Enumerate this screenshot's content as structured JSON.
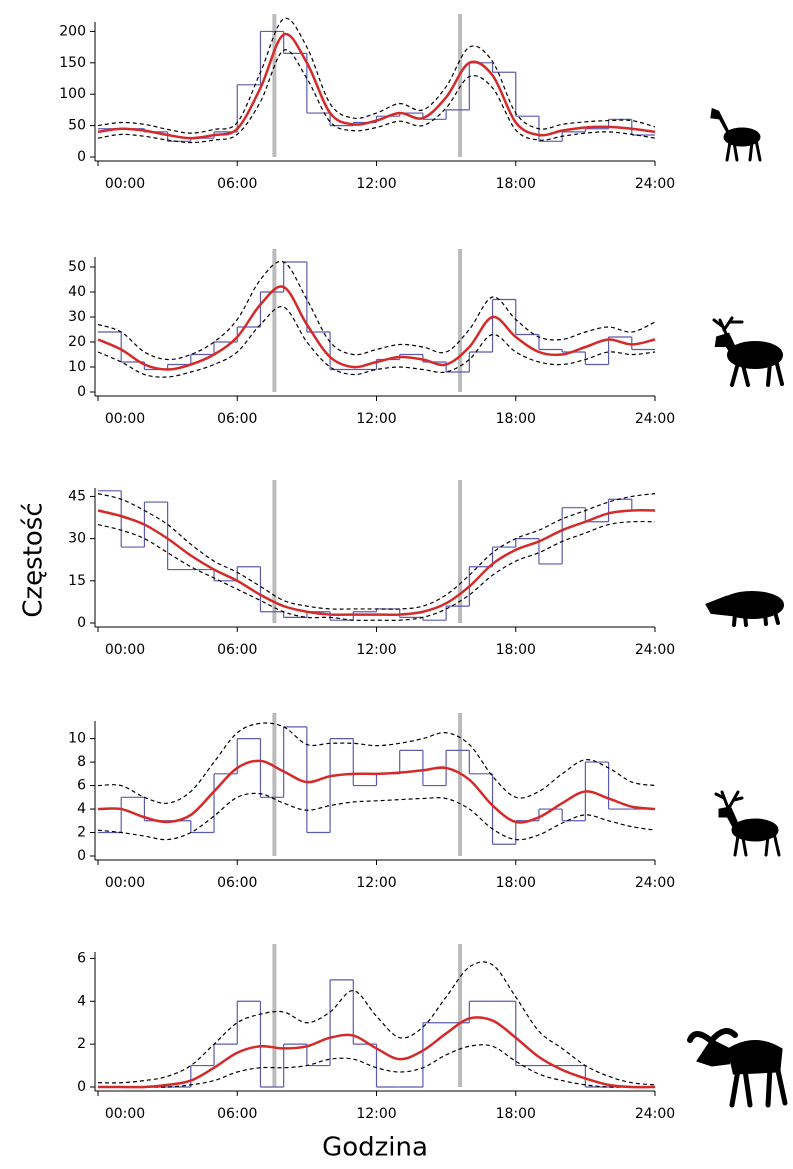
{
  "y_label": "Częstość",
  "x_label": "Godzina",
  "chart_data": [
    {
      "type": "histogram",
      "bins": [
        0,
        1,
        2,
        3,
        4,
        5,
        6,
        7,
        8,
        9,
        10,
        11,
        12,
        13,
        14,
        15,
        16,
        17,
        18,
        19,
        20,
        21,
        22,
        23,
        24
      ],
      "counts": [
        45,
        45,
        40,
        25,
        30,
        40,
        115,
        200,
        165,
        70,
        50,
        55,
        65,
        70,
        60,
        75,
        150,
        135,
        65,
        25,
        40,
        45,
        60,
        35
      ],
      "hist_color": "#5b5bb0",
      "x": [
        0,
        1,
        2,
        3,
        4,
        5,
        6,
        7,
        8,
        9,
        10,
        11,
        12,
        13,
        14,
        15,
        16,
        17,
        18,
        19,
        20,
        21,
        22,
        23,
        24
      ],
      "series": [
        {
          "color": "#000000",
          "dash": true,
          "values": [
            50,
            55,
            52,
            44,
            38,
            44,
            55,
            135,
            220,
            175,
            85,
            62,
            70,
            85,
            75,
            112,
            175,
            152,
            70,
            45,
            52,
            56,
            58,
            58,
            48
          ]
        },
        {
          "color": "#000000",
          "dash": true,
          "values": [
            30,
            36,
            33,
            27,
            23,
            27,
            36,
            88,
            170,
            125,
            56,
            42,
            47,
            57,
            50,
            78,
            128,
            110,
            43,
            27,
            33,
            38,
            40,
            36,
            30
          ]
        },
        {
          "color": "#d42a2a",
          "dash": false,
          "values": [
            40,
            45,
            42,
            35,
            30,
            35,
            45,
            110,
            195,
            150,
            70,
            52,
            58,
            70,
            62,
            95,
            150,
            130,
            55,
            35,
            42,
            47,
            48,
            45,
            40
          ]
        }
      ],
      "vlines": [
        7.6,
        15.6
      ],
      "vline_color": "#bbbbbb",
      "xlim": [
        0,
        24
      ],
      "xticks": [
        {
          "value": 0,
          "label": "00:00"
        },
        {
          "value": 6,
          "label": "06:00"
        },
        {
          "value": 12,
          "label": "12:00"
        },
        {
          "value": 18,
          "label": "18:00"
        },
        {
          "value": 24,
          "label": "24:00"
        }
      ],
      "ylim": [
        0,
        215
      ],
      "yticks": [
        0,
        50,
        100,
        150,
        200
      ]
    },
    {
      "type": "histogram",
      "bins": [
        0,
        1,
        2,
        3,
        4,
        5,
        6,
        7,
        8,
        9,
        10,
        11,
        12,
        13,
        14,
        15,
        16,
        17,
        18,
        19,
        20,
        21,
        22,
        23,
        24
      ],
      "counts": [
        24,
        12,
        9,
        11,
        15,
        20,
        26,
        40,
        52,
        24,
        9,
        9,
        13,
        15,
        12,
        8,
        16,
        37,
        23,
        17,
        16,
        11,
        22,
        17
      ],
      "hist_color": "#5b5bb0",
      "x": [
        0,
        1,
        2,
        3,
        4,
        5,
        6,
        7,
        8,
        9,
        10,
        11,
        12,
        13,
        14,
        15,
        16,
        17,
        18,
        19,
        20,
        21,
        22,
        23,
        24
      ],
      "series": [
        {
          "color": "#000000",
          "dash": true,
          "values": [
            27,
            24,
            16,
            13,
            15,
            20,
            29,
            45,
            52,
            37,
            20,
            15,
            17,
            19,
            18,
            16,
            25,
            38,
            29,
            22,
            21,
            24,
            26,
            24,
            28
          ]
        },
        {
          "color": "#000000",
          "dash": true,
          "values": [
            16,
            12,
            7,
            6,
            8,
            11,
            16,
            27,
            34,
            20,
            10,
            7,
            9,
            10,
            9,
            8,
            13,
            23,
            16,
            12,
            11,
            13,
            16,
            15,
            16
          ]
        },
        {
          "color": "#d42a2a",
          "dash": false,
          "values": [
            21,
            17,
            11,
            9,
            11,
            15,
            22,
            35,
            42,
            27,
            14,
            10,
            12,
            14,
            13,
            11,
            18,
            30,
            22,
            16,
            15,
            18,
            21,
            19,
            21
          ]
        }
      ],
      "vlines": [
        7.6,
        15.6
      ],
      "vline_color": "#bbbbbb",
      "xlim": [
        0,
        24
      ],
      "xticks": [
        {
          "value": 0,
          "label": "00:00"
        },
        {
          "value": 6,
          "label": "06:00"
        },
        {
          "value": 12,
          "label": "12:00"
        },
        {
          "value": 18,
          "label": "18:00"
        },
        {
          "value": 24,
          "label": "24:00"
        }
      ],
      "ylim": [
        0,
        54
      ],
      "yticks": [
        0,
        10,
        20,
        30,
        40,
        50
      ]
    },
    {
      "type": "histogram",
      "bins": [
        0,
        1,
        2,
        3,
        4,
        5,
        6,
        7,
        8,
        9,
        10,
        11,
        12,
        13,
        14,
        15,
        16,
        17,
        18,
        19,
        20,
        21,
        22,
        23,
        24
      ],
      "counts": [
        47,
        27,
        43,
        19,
        19,
        15,
        20,
        4,
        2,
        4,
        1,
        4,
        5,
        2,
        1,
        6,
        20,
        27,
        30,
        21,
        41,
        36,
        44,
        40
      ],
      "hist_color": "#5b5bb0",
      "x": [
        0,
        1,
        2,
        3,
        4,
        5,
        6,
        7,
        8,
        9,
        10,
        11,
        12,
        13,
        14,
        15,
        16,
        17,
        18,
        19,
        20,
        21,
        22,
        23,
        24
      ],
      "series": [
        {
          "color": "#000000",
          "dash": true,
          "values": [
            46,
            44,
            40,
            35,
            28,
            22,
            18,
            13,
            8,
            6,
            5,
            5,
            5,
            5,
            6,
            10,
            17,
            25,
            30,
            33,
            37,
            40,
            43,
            45,
            46
          ]
        },
        {
          "color": "#000000",
          "dash": true,
          "values": [
            35,
            33,
            30,
            25,
            20,
            16,
            12,
            8,
            4,
            2,
            2,
            1,
            1,
            1,
            2,
            5,
            10,
            17,
            22,
            25,
            29,
            32,
            35,
            36,
            36
          ]
        },
        {
          "color": "#d42a2a",
          "dash": false,
          "values": [
            40,
            38,
            35,
            30,
            24,
            19,
            15,
            10,
            6,
            4,
            3,
            3,
            3,
            3,
            4,
            7,
            13,
            21,
            26,
            29,
            33,
            36,
            39,
            40,
            40
          ]
        }
      ],
      "vlines": [
        7.6,
        15.6
      ],
      "vline_color": "#bbbbbb",
      "xlim": [
        0,
        24
      ],
      "xticks": [
        {
          "value": 0,
          "label": "00:00"
        },
        {
          "value": 6,
          "label": "06:00"
        },
        {
          "value": 12,
          "label": "12:00"
        },
        {
          "value": 18,
          "label": "18:00"
        },
        {
          "value": 24,
          "label": "24:00"
        }
      ],
      "ylim": [
        0,
        48
      ],
      "yticks": [
        0,
        15,
        30,
        45
      ]
    },
    {
      "type": "histogram",
      "bins": [
        0,
        1,
        2,
        3,
        4,
        5,
        6,
        7,
        8,
        9,
        10,
        11,
        12,
        13,
        14,
        15,
        16,
        17,
        18,
        19,
        20,
        21,
        22,
        23,
        24
      ],
      "counts": [
        2,
        5,
        3,
        3,
        2,
        7,
        10,
        5,
        11,
        2,
        10,
        6,
        7,
        9,
        6,
        9,
        7,
        1,
        3,
        4,
        3,
        8,
        4,
        4
      ],
      "hist_color": "#5b5bb0",
      "x": [
        0,
        1,
        2,
        3,
        4,
        5,
        6,
        7,
        8,
        9,
        10,
        11,
        12,
        13,
        14,
        15,
        16,
        17,
        18,
        19,
        20,
        21,
        22,
        23,
        24
      ],
      "series": [
        {
          "color": "#000000",
          "dash": true,
          "values": [
            6,
            6,
            5,
            4.5,
            5.5,
            8,
            10.5,
            11.3,
            11,
            9.5,
            9.6,
            9.6,
            9.4,
            9.6,
            10,
            10.5,
            9.5,
            6.8,
            5,
            5.5,
            7,
            8.2,
            7.5,
            6.3,
            6
          ]
        },
        {
          "color": "#000000",
          "dash": true,
          "values": [
            2.2,
            2,
            1.7,
            1.4,
            2,
            3.4,
            5,
            5.3,
            4.5,
            3.9,
            4.3,
            4.6,
            4.7,
            4.8,
            4.9,
            4.9,
            4,
            2.3,
            1.4,
            1.8,
            2.8,
            3.5,
            3,
            2.5,
            2.2
          ]
        },
        {
          "color": "#d42a2a",
          "dash": false,
          "values": [
            4,
            4,
            3.3,
            2.9,
            3.5,
            5.5,
            7.5,
            8.1,
            7.2,
            6.3,
            6.8,
            7,
            7,
            7.1,
            7.3,
            7.5,
            6.5,
            4.3,
            2.9,
            3.3,
            4.5,
            5.5,
            4.9,
            4.2,
            4
          ]
        }
      ],
      "vlines": [
        7.6,
        15.6
      ],
      "vline_color": "#bbbbbb",
      "xlim": [
        0,
        24
      ],
      "xticks": [
        {
          "value": 0,
          "label": "00:00"
        },
        {
          "value": 6,
          "label": "06:00"
        },
        {
          "value": 12,
          "label": "12:00"
        },
        {
          "value": 18,
          "label": "18:00"
        },
        {
          "value": 24,
          "label": "24:00"
        }
      ],
      "ylim": [
        0,
        11.5
      ],
      "yticks": [
        0,
        2,
        4,
        6,
        8,
        10
      ]
    },
    {
      "type": "histogram",
      "bins": [
        0,
        1,
        2,
        3,
        4,
        5,
        6,
        7,
        8,
        9,
        10,
        11,
        12,
        13,
        14,
        15,
        16,
        17,
        18,
        19,
        20,
        21,
        22,
        23,
        24
      ],
      "counts": [
        0,
        0,
        0,
        0,
        1,
        2,
        4,
        0,
        2,
        1,
        5,
        2,
        0,
        0,
        3,
        3,
        4,
        4,
        1,
        1,
        1,
        0,
        0,
        0
      ],
      "hist_color": "#5b5bb0",
      "x": [
        0,
        1,
        2,
        3,
        4,
        5,
        6,
        7,
        8,
        9,
        10,
        11,
        12,
        13,
        14,
        15,
        16,
        17,
        18,
        19,
        20,
        21,
        22,
        23,
        24
      ],
      "series": [
        {
          "color": "#000000",
          "dash": true,
          "values": [
            0.2,
            0.2,
            0.3,
            0.5,
            1,
            2,
            3,
            3.4,
            3.5,
            3,
            3.5,
            4.5,
            3.3,
            2.3,
            2.8,
            4.2,
            5.6,
            5.7,
            4.2,
            2.6,
            1.8,
            1,
            0.5,
            0.2,
            0.1
          ]
        },
        {
          "color": "#000000",
          "dash": true,
          "values": [
            0,
            0,
            0,
            0,
            0.1,
            0.3,
            0.7,
            0.9,
            0.9,
            1,
            1.3,
            1.3,
            0.9,
            0.7,
            0.9,
            1.5,
            1.9,
            1.9,
            1.2,
            0.6,
            0.3,
            0.1,
            0,
            0,
            0
          ]
        },
        {
          "color": "#d42a2a",
          "dash": false,
          "values": [
            0,
            0,
            0,
            0.1,
            0.3,
            0.9,
            1.6,
            1.9,
            1.8,
            1.9,
            2.3,
            2.4,
            1.8,
            1.3,
            1.7,
            2.5,
            3.2,
            3.1,
            2.3,
            1.4,
            0.8,
            0.4,
            0.1,
            0,
            0
          ]
        }
      ],
      "vlines": [
        7.6,
        15.6
      ],
      "vline_color": "#bbbbbb",
      "xlim": [
        0,
        24
      ],
      "xticks": [
        {
          "value": 0,
          "label": "00:00"
        },
        {
          "value": 6,
          "label": "06:00"
        },
        {
          "value": 12,
          "label": "12:00"
        },
        {
          "value": 18,
          "label": "18:00"
        },
        {
          "value": 24,
          "label": "24:00"
        }
      ],
      "ylim": [
        0,
        6.3
      ],
      "yticks": [
        0,
        2,
        4,
        6
      ]
    }
  ]
}
